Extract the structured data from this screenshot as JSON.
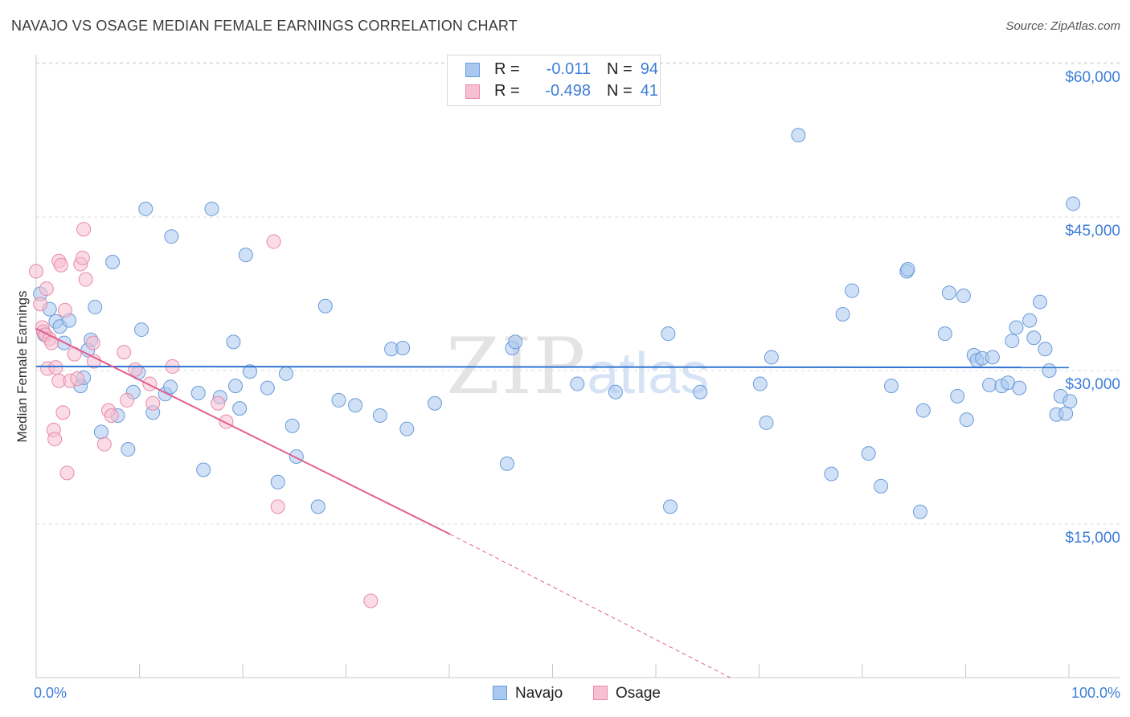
{
  "header": {
    "title": "NAVAJO VS OSAGE MEDIAN FEMALE EARNINGS CORRELATION CHART",
    "source": "Source: ZipAtlas.com"
  },
  "watermark": {
    "zip": "ZIP",
    "atlas": "atlas"
  },
  "legend": {
    "navajo": {
      "r_label": "R =",
      "r_value": "-0.011",
      "n_label": "N =",
      "n_value": "94"
    },
    "osage": {
      "r_label": "R =",
      "r_value": "-0.498",
      "n_label": "N =",
      "n_value": "41"
    }
  },
  "bottom_legend": {
    "navajo": "Navajo",
    "osage": "Osage"
  },
  "axes": {
    "ylabel": "Median Female Earnings",
    "x_min_label": "0.0%",
    "x_max_label": "100.0%",
    "y_ticks": [
      "$60,000",
      "$45,000",
      "$30,000",
      "$15,000"
    ]
  },
  "colors": {
    "navajo_fill": "#a9c8f0",
    "navajo_stroke": "#6a9bd8",
    "navajo_line": "#2f74d0",
    "osage_fill": "#f7bfd1",
    "osage_stroke": "#e88aa9",
    "osage_line": "#e0608f",
    "tick_text": "#3d7dd8",
    "grid": "#dddddd"
  },
  "chart_data": {
    "type": "scatter",
    "title": "NAVAJO VS OSAGE MEDIAN FEMALE EARNINGS CORRELATION CHART",
    "xlabel": "",
    "ylabel": "Median Female Earnings",
    "xlim": [
      0,
      100
    ],
    "ylim": [
      0,
      62000
    ],
    "y_gridlines": [
      15000,
      30000,
      45000,
      60000
    ],
    "series": [
      {
        "name": "Navajo",
        "r": -0.011,
        "n": 94,
        "trend": {
          "x": [
            0,
            100
          ],
          "y": [
            30400,
            30300
          ]
        },
        "points": [
          [
            0.4,
            37500
          ],
          [
            0.8,
            33500
          ],
          [
            1.3,
            36000
          ],
          [
            1.9,
            34800
          ],
          [
            2.3,
            34300
          ],
          [
            2.7,
            32700
          ],
          [
            3.2,
            34900
          ],
          [
            4.3,
            28500
          ],
          [
            4.6,
            29300
          ],
          [
            5.0,
            32000
          ],
          [
            5.3,
            33000
          ],
          [
            5.7,
            36200
          ],
          [
            6.3,
            24000
          ],
          [
            7.4,
            40600
          ],
          [
            7.9,
            25600
          ],
          [
            8.9,
            22300
          ],
          [
            9.4,
            27900
          ],
          [
            9.9,
            29800
          ],
          [
            10.2,
            34000
          ],
          [
            10.6,
            45800
          ],
          [
            11.3,
            25900
          ],
          [
            12.5,
            27700
          ],
          [
            13.0,
            28400
          ],
          [
            13.1,
            43100
          ],
          [
            15.7,
            27800
          ],
          [
            16.2,
            20300
          ],
          [
            17.0,
            45800
          ],
          [
            17.8,
            27400
          ],
          [
            19.1,
            32800
          ],
          [
            19.3,
            28500
          ],
          [
            19.7,
            26300
          ],
          [
            20.3,
            41300
          ],
          [
            20.7,
            29900
          ],
          [
            22.4,
            28300
          ],
          [
            23.4,
            19100
          ],
          [
            24.2,
            29700
          ],
          [
            24.8,
            24600
          ],
          [
            25.2,
            21600
          ],
          [
            27.3,
            16700
          ],
          [
            28.0,
            36300
          ],
          [
            29.3,
            27100
          ],
          [
            30.9,
            26600
          ],
          [
            33.3,
            25600
          ],
          [
            34.4,
            32100
          ],
          [
            35.5,
            32200
          ],
          [
            35.9,
            24300
          ],
          [
            38.6,
            26800
          ],
          [
            45.6,
            20900
          ],
          [
            46.1,
            32200
          ],
          [
            46.4,
            32800
          ],
          [
            52.4,
            28700
          ],
          [
            56.1,
            27900
          ],
          [
            61.2,
            33600
          ],
          [
            61.4,
            16700
          ],
          [
            64.3,
            27900
          ],
          [
            70.1,
            28700
          ],
          [
            70.7,
            24900
          ],
          [
            71.2,
            31300
          ],
          [
            73.8,
            53000
          ],
          [
            77.0,
            19900
          ],
          [
            78.1,
            35500
          ],
          [
            79.0,
            37800
          ],
          [
            80.6,
            21900
          ],
          [
            81.8,
            18700
          ],
          [
            82.8,
            28500
          ],
          [
            84.3,
            39700
          ],
          [
            84.4,
            39900
          ],
          [
            85.6,
            16200
          ],
          [
            85.9,
            26100
          ],
          [
            88.0,
            33600
          ],
          [
            88.4,
            37600
          ],
          [
            89.2,
            27500
          ],
          [
            89.8,
            37300
          ],
          [
            90.1,
            25200
          ],
          [
            90.8,
            31500
          ],
          [
            91.1,
            31000
          ],
          [
            91.6,
            31200
          ],
          [
            92.3,
            28600
          ],
          [
            92.6,
            31300
          ],
          [
            93.5,
            28500
          ],
          [
            94.1,
            28800
          ],
          [
            94.5,
            32900
          ],
          [
            94.9,
            34200
          ],
          [
            95.2,
            28300
          ],
          [
            96.2,
            34900
          ],
          [
            96.6,
            33200
          ],
          [
            97.2,
            36700
          ],
          [
            97.7,
            32100
          ],
          [
            98.1,
            30000
          ],
          [
            98.8,
            25700
          ],
          [
            99.2,
            27500
          ],
          [
            99.7,
            25800
          ],
          [
            100.1,
            27000
          ],
          [
            100.4,
            46300
          ]
        ]
      },
      {
        "name": "Osage",
        "r": -0.498,
        "n": 41,
        "trend": {
          "x": [
            0,
            40.1
          ],
          "y": [
            34100,
            14000
          ]
        },
        "trend_dashed": {
          "x": [
            40.1,
            67.2
          ],
          "y": [
            14000,
            0
          ]
        },
        "points": [
          [
            0.0,
            39700
          ],
          [
            0.4,
            36500
          ],
          [
            0.6,
            34200
          ],
          [
            0.7,
            33800
          ],
          [
            0.9,
            33500
          ],
          [
            1.0,
            38000
          ],
          [
            1.1,
            30200
          ],
          [
            1.3,
            33100
          ],
          [
            1.5,
            32700
          ],
          [
            1.7,
            24200
          ],
          [
            1.8,
            23300
          ],
          [
            1.9,
            30300
          ],
          [
            2.2,
            29000
          ],
          [
            2.2,
            40700
          ],
          [
            2.4,
            40300
          ],
          [
            2.6,
            25900
          ],
          [
            2.8,
            35900
          ],
          [
            3.0,
            20000
          ],
          [
            3.3,
            29000
          ],
          [
            3.7,
            31600
          ],
          [
            4.0,
            29200
          ],
          [
            4.3,
            40400
          ],
          [
            4.5,
            41000
          ],
          [
            4.6,
            43800
          ],
          [
            4.8,
            38900
          ],
          [
            5.5,
            32700
          ],
          [
            5.6,
            30900
          ],
          [
            6.6,
            22800
          ],
          [
            7.0,
            26100
          ],
          [
            7.3,
            25600
          ],
          [
            8.5,
            31800
          ],
          [
            8.8,
            27100
          ],
          [
            9.6,
            30100
          ],
          [
            11.0,
            28700
          ],
          [
            11.3,
            26800
          ],
          [
            13.2,
            30400
          ],
          [
            17.6,
            26800
          ],
          [
            18.4,
            25000
          ],
          [
            23.0,
            42600
          ],
          [
            23.4,
            16700
          ],
          [
            32.4,
            7500
          ]
        ]
      }
    ]
  }
}
